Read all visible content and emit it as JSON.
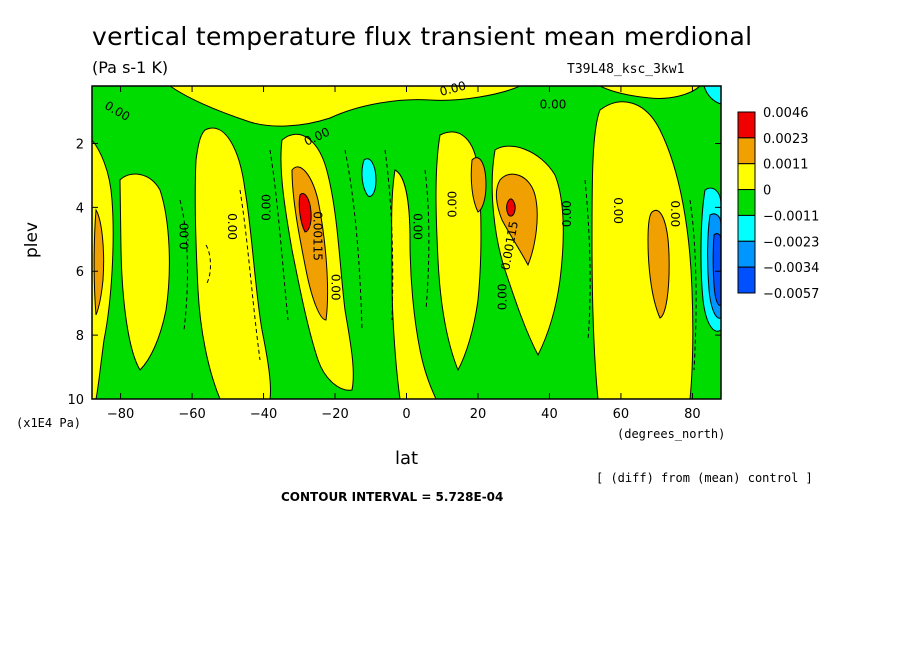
{
  "header": {
    "title": "vertical temperature flux transient mean merdional",
    "units": "(Pa s-1 K)",
    "run": "T39L48_ksc_3kw1"
  },
  "footer": {
    "yunits": "(x1E4 Pa)",
    "xunits": "(degrees_north)",
    "diff_note": "[ (diff) from (mean) control ]",
    "contour_interval": "CONTOUR INTERVAL = 5.728E-04"
  },
  "chart_data": {
    "type": "heatmap",
    "title": "vertical temperature flux transient mean merdional",
    "xlabel": "lat",
    "ylabel": "plev",
    "xlim": [
      -88,
      88
    ],
    "ylim": [
      0.2,
      10
    ],
    "y_inverted": true,
    "x_ticks": [
      -80,
      -60,
      -40,
      -20,
      0,
      20,
      40,
      60,
      80
    ],
    "y_ticks": [
      2,
      4,
      6,
      8,
      10
    ],
    "colorbar": {
      "labels": [
        "0.0046",
        "0.0023",
        "0.0011",
        "0",
        "−0.0011",
        "−0.0023",
        "−0.0034",
        "−0.0057"
      ],
      "colors": [
        "#f00000",
        "#f0a000",
        "#ffff00",
        "#00dc00",
        "#00ffff",
        "#0096ff",
        "#0050ff"
      ]
    },
    "contour_labels": [
      {
        "text": "0.00",
        "lat": -81,
        "plev": 1.0,
        "angle": 30
      },
      {
        "text": "0.00",
        "lat": -25,
        "plev": 1.8,
        "angle": -25
      },
      {
        "text": "0.00",
        "lat": 13,
        "plev": 0.3,
        "angle": -15
      },
      {
        "text": "0.00",
        "lat": 41,
        "plev": 0.8,
        "angle": 0
      },
      {
        "text": "0.00",
        "lat": -62,
        "plev": 4.9,
        "angle": -90
      },
      {
        "text": "0.00",
        "lat": -49,
        "plev": 4.6,
        "angle": 90
      },
      {
        "text": "0.00",
        "lat": -39,
        "plev": 4.0,
        "angle": -90
      },
      {
        "text": "0.00115",
        "lat": -25,
        "plev": 4.9,
        "angle": 90
      },
      {
        "text": "0.00",
        "lat": -20,
        "plev": 6.5,
        "angle": 90
      },
      {
        "text": "0.00",
        "lat": 3,
        "plev": 4.6,
        "angle": 90
      },
      {
        "text": "0.00",
        "lat": 13,
        "plev": 3.9,
        "angle": -90
      },
      {
        "text": "0.00115",
        "lat": 29,
        "plev": 5.2,
        "angle": -80
      },
      {
        "text": "0.00",
        "lat": 27,
        "plev": 6.8,
        "angle": -90
      },
      {
        "text": "0.00",
        "lat": 45,
        "plev": 4.2,
        "angle": -90
      },
      {
        "text": "0.00",
        "lat": 59,
        "plev": 4.1,
        "angle": 90
      },
      {
        "text": "0.00",
        "lat": 75,
        "plev": 4.2,
        "angle": 90
      }
    ]
  }
}
